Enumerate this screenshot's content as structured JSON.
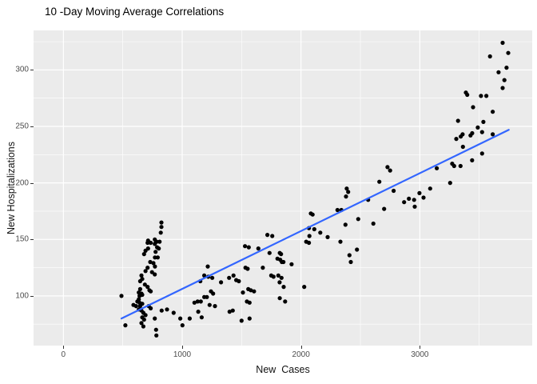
{
  "title": "10 -Day Moving Average Correlations",
  "chart_data": {
    "type": "scatter",
    "title": "10 -Day Moving Average Correlations",
    "xlabel": "New  Cases",
    "ylabel": "New Hospitalizations",
    "xlim": [
      -251,
      3946
    ],
    "ylim": [
      56,
      335
    ],
    "x_ticks_major": [
      0,
      1000,
      2000,
      3000
    ],
    "x_ticks_minor": [
      500,
      1500,
      2500,
      3500
    ],
    "y_ticks_major": [
      100,
      150,
      200,
      250,
      300
    ],
    "y_ticks_minor": [
      75,
      125,
      175,
      225,
      275,
      325
    ],
    "grid": true,
    "legend": "none",
    "panel_bg": "#EBEBEB",
    "grid_color": "#FFFFFF",
    "point_color": "#000000",
    "trend_color": "#3366FF",
    "axis_text_color": "#4D4D4D",
    "trend_line": {
      "x": [
        489,
        3749
      ],
      "y": [
        80,
        247
      ]
    },
    "points": [
      [
        489,
        100
      ],
      [
        522,
        74
      ],
      [
        590,
        92
      ],
      [
        612,
        91
      ],
      [
        623,
        95
      ],
      [
        635,
        103
      ],
      [
        635,
        97
      ],
      [
        635,
        88
      ],
      [
        641,
        100
      ],
      [
        641,
        94
      ],
      [
        646,
        113
      ],
      [
        646,
        106
      ],
      [
        646,
        91
      ],
      [
        657,
        118
      ],
      [
        657,
        102
      ],
      [
        657,
        87
      ],
      [
        657,
        76
      ],
      [
        664,
        101
      ],
      [
        664,
        115
      ],
      [
        664,
        93
      ],
      [
        664,
        81
      ],
      [
        673,
        85
      ],
      [
        673,
        73
      ],
      [
        679,
        137
      ],
      [
        679,
        79
      ],
      [
        686,
        110
      ],
      [
        691,
        140
      ],
      [
        691,
        122
      ],
      [
        691,
        83
      ],
      [
        709,
        147
      ],
      [
        709,
        125
      ],
      [
        709,
        108
      ],
      [
        713,
        142
      ],
      [
        713,
        149
      ],
      [
        718,
        91
      ],
      [
        724,
        105
      ],
      [
        731,
        130
      ],
      [
        735,
        147
      ],
      [
        735,
        104
      ],
      [
        735,
        89
      ],
      [
        746,
        121
      ],
      [
        758,
        129
      ],
      [
        769,
        146
      ],
      [
        769,
        119
      ],
      [
        769,
        80
      ],
      [
        769,
        150
      ],
      [
        776,
        139
      ],
      [
        780,
        148
      ],
      [
        780,
        70
      ],
      [
        783,
        65
      ],
      [
        785,
        148
      ],
      [
        789,
        143
      ],
      [
        794,
        134
      ],
      [
        771,
        134
      ],
      [
        771,
        126
      ],
      [
        803,
        142
      ],
      [
        810,
        148
      ],
      [
        820,
        156
      ],
      [
        825,
        165
      ],
      [
        825,
        161
      ],
      [
        827,
        87
      ],
      [
        872,
        88
      ],
      [
        928,
        85
      ],
      [
        984,
        80
      ],
      [
        1002,
        74
      ],
      [
        1063,
        80
      ],
      [
        1103,
        94
      ],
      [
        1130,
        95
      ],
      [
        1157,
        95
      ],
      [
        1135,
        86
      ],
      [
        1164,
        81
      ],
      [
        1186,
        99
      ],
      [
        1186,
        118
      ],
      [
        1208,
        99
      ],
      [
        1215,
        126
      ],
      [
        1220,
        117
      ],
      [
        1231,
        92
      ],
      [
        1242,
        104
      ],
      [
        1253,
        116
      ],
      [
        1260,
        102
      ],
      [
        1276,
        91
      ],
      [
        1327,
        112
      ],
      [
        1153,
        113
      ],
      [
        1395,
        116
      ],
      [
        1399,
        86
      ],
      [
        1426,
        87
      ],
      [
        1432,
        118
      ],
      [
        1455,
        114
      ],
      [
        1477,
        113
      ],
      [
        1500,
        78
      ],
      [
        1511,
        103
      ],
      [
        1529,
        144
      ],
      [
        1533,
        125
      ],
      [
        1545,
        95
      ],
      [
        1551,
        124
      ],
      [
        1556,
        106
      ],
      [
        1560,
        143
      ],
      [
        1567,
        94
      ],
      [
        1567,
        80
      ],
      [
        1578,
        105
      ],
      [
        1605,
        104
      ],
      [
        1641,
        142
      ],
      [
        1679,
        125
      ],
      [
        1717,
        154
      ],
      [
        1735,
        138
      ],
      [
        1749,
        118
      ],
      [
        1758,
        153
      ],
      [
        1769,
        117
      ],
      [
        1802,
        133
      ],
      [
        1809,
        118
      ],
      [
        1820,
        112
      ],
      [
        1821,
        138
      ],
      [
        1825,
        132
      ],
      [
        1832,
        137
      ],
      [
        1836,
        116
      ],
      [
        1839,
        130
      ],
      [
        1852,
        130
      ],
      [
        1854,
        108
      ],
      [
        1866,
        95
      ],
      [
        1821,
        98
      ],
      [
        1921,
        128
      ],
      [
        2027,
        108
      ],
      [
        2044,
        148
      ],
      [
        2067,
        147
      ],
      [
        2067,
        160
      ],
      [
        2071,
        153
      ],
      [
        2083,
        173
      ],
      [
        2098,
        172
      ],
      [
        2112,
        159
      ],
      [
        2162,
        156
      ],
      [
        2224,
        152
      ],
      [
        2307,
        176
      ],
      [
        2332,
        148
      ],
      [
        2340,
        176
      ],
      [
        2374,
        163
      ],
      [
        2379,
        188
      ],
      [
        2385,
        195
      ],
      [
        2397,
        192
      ],
      [
        2408,
        136
      ],
      [
        2419,
        130
      ],
      [
        2471,
        141
      ],
      [
        2482,
        168
      ],
      [
        2565,
        185
      ],
      [
        2609,
        164
      ],
      [
        2659,
        201
      ],
      [
        2700,
        177
      ],
      [
        2728,
        214
      ],
      [
        2750,
        211
      ],
      [
        2780,
        193
      ],
      [
        2868,
        183
      ],
      [
        2908,
        186
      ],
      [
        2952,
        185
      ],
      [
        2957,
        179
      ],
      [
        2997,
        191
      ],
      [
        3031,
        187
      ],
      [
        3087,
        195
      ],
      [
        3143,
        213
      ],
      [
        3255,
        200
      ],
      [
        3273,
        217
      ],
      [
        3289,
        215
      ],
      [
        3307,
        239
      ],
      [
        3322,
        255
      ],
      [
        3343,
        215
      ],
      [
        3345,
        241
      ],
      [
        3360,
        243
      ],
      [
        3363,
        232
      ],
      [
        3388,
        280
      ],
      [
        3399,
        278
      ],
      [
        3427,
        242
      ],
      [
        3440,
        220
      ],
      [
        3441,
        244
      ],
      [
        3448,
        267
      ],
      [
        3488,
        249
      ],
      [
        3515,
        277
      ],
      [
        3524,
        226
      ],
      [
        3524,
        245
      ],
      [
        3535,
        254
      ],
      [
        3560,
        277
      ],
      [
        3591,
        312
      ],
      [
        3614,
        243
      ],
      [
        3614,
        263
      ],
      [
        3663,
        298
      ],
      [
        3697,
        284
      ],
      [
        3697,
        324
      ],
      [
        3712,
        291
      ],
      [
        3730,
        302
      ],
      [
        3744,
        315
      ]
    ]
  }
}
